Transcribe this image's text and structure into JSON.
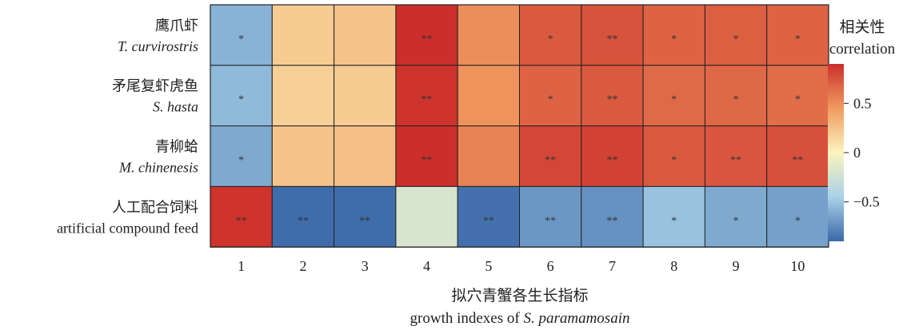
{
  "chart_data": {
    "type": "heatmap",
    "rows": [
      {
        "zh": "鹰爪虾",
        "en": "T. curvirostris"
      },
      {
        "zh": "矛尾复虾虎鱼",
        "en": "S. hasta"
      },
      {
        "zh": "青柳蛤",
        "en": "M. chinenesis"
      },
      {
        "zh": "人工配合饲料",
        "en": "artificial compound feed"
      }
    ],
    "row_label_italic": [
      true,
      true,
      true,
      false
    ],
    "columns": [
      "1",
      "2",
      "3",
      "4",
      "5",
      "6",
      "7",
      "8",
      "9",
      "10"
    ],
    "values": [
      [
        -0.58,
        0.2,
        0.25,
        0.9,
        0.5,
        0.72,
        0.75,
        0.68,
        0.7,
        0.68
      ],
      [
        -0.55,
        0.18,
        0.2,
        0.88,
        0.48,
        0.68,
        0.72,
        0.65,
        0.66,
        0.64
      ],
      [
        -0.62,
        0.25,
        0.26,
        0.92,
        0.55,
        0.8,
        0.82,
        0.72,
        0.74,
        0.76
      ],
      [
        0.88,
        -0.88,
        -0.88,
        -0.2,
        -0.86,
        -0.7,
        -0.72,
        -0.52,
        -0.62,
        -0.66
      ]
    ],
    "significance": [
      [
        "*",
        "",
        "",
        "**",
        "",
        "*",
        "**",
        "*",
        "*",
        "*"
      ],
      [
        "*",
        "",
        "",
        "**",
        "",
        "*",
        "**",
        "*",
        "*",
        "*"
      ],
      [
        "*",
        "",
        "",
        "**",
        "",
        "**",
        "**",
        "*",
        "**",
        "**"
      ],
      [
        "**",
        "**",
        "**",
        "",
        "**",
        "**",
        "**",
        "*",
        "*",
        "*"
      ]
    ],
    "xlabel_zh": "拟穴青蟹各生长指标",
    "xlabel_en_prefix": "growth indexes of ",
    "xlabel_en_italic": "S. paramamosain",
    "colorbar": {
      "title_zh": "相关性",
      "title_en": "correlation",
      "ticks": [
        0.5,
        0,
        -0.5
      ],
      "tick_labels": [
        "0.5",
        "0",
        "−0.5"
      ],
      "range": [
        -0.9,
        0.9
      ],
      "colors": [
        "#3a68a8",
        "#a9d2e8",
        "#fbf4bd",
        "#f09a5f",
        "#cc2f2b"
      ]
    }
  }
}
